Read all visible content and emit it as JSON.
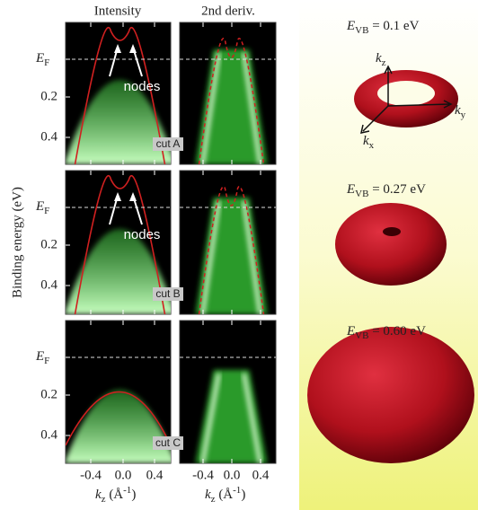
{
  "columns": [
    "Intensity",
    "2nd deriv."
  ],
  "y_axis_label": "Binding energy (eV)",
  "y_ticks": {
    "fermi": {
      "symbol": "E",
      "subscript": "F"
    },
    "values": [
      "0.2",
      "0.4"
    ]
  },
  "x_ticks": [
    "-0.4",
    "0.0",
    "0.4"
  ],
  "x_axis_label": {
    "symbol": "k",
    "subscript": "z",
    "unit": " (Å",
    "exponent": "-1",
    "close": ")"
  },
  "rows": [
    {
      "cut": "cut A",
      "annotation": "nodes",
      "energy": {
        "symbol": "E",
        "subscript": "VB",
        "text": " = 0.1 eV"
      }
    },
    {
      "cut": "cut B",
      "annotation": "nodes",
      "energy": {
        "symbol": "E",
        "subscript": "VB",
        "text": " = 0.27 eV"
      }
    },
    {
      "cut": "cut C",
      "energy": {
        "symbol": "E",
        "subscript": "VB",
        "text": " = 0.60 eV"
      }
    }
  ],
  "axes_3d": [
    {
      "symbol": "k",
      "subscript": "z"
    },
    {
      "symbol": "k",
      "subscript": "y"
    },
    {
      "symbol": "k",
      "subscript": "x"
    }
  ]
}
